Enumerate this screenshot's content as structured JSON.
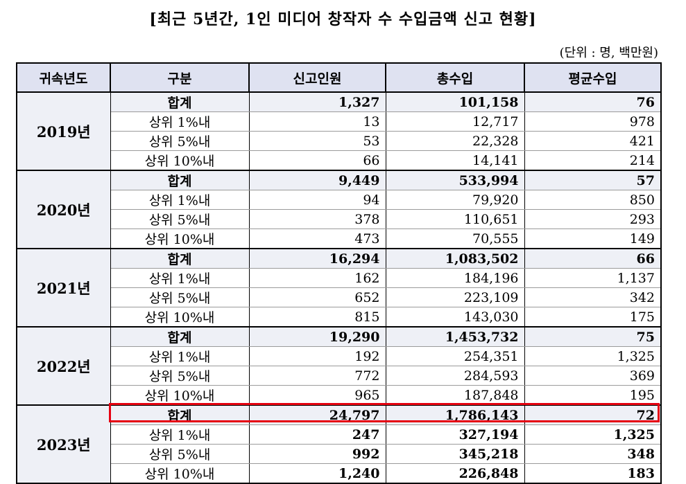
{
  "title": "[최근 5년간, 1인 미디어 창작자 수 수입금액 신고 현황]",
  "unit": "(단위 : 명, 백만원)",
  "columns": [
    "귀속년도",
    "구분",
    "신고인원",
    "총수입",
    "평균수입"
  ],
  "years": [
    {
      "year": "2019년",
      "rows": [
        {
          "label": "합계",
          "count": "1,327",
          "income": "101,158",
          "avg": "76"
        },
        {
          "label": "상위 1%내",
          "count": "13",
          "income": "12,717",
          "avg": "978"
        },
        {
          "label": "상위 5%내",
          "count": "53",
          "income": "22,328",
          "avg": "421"
        },
        {
          "label": "상위 10%내",
          "count": "66",
          "income": "14,141",
          "avg": "214"
        }
      ]
    },
    {
      "year": "2020년",
      "rows": [
        {
          "label": "합계",
          "count": "9,449",
          "income": "533,994",
          "avg": "57"
        },
        {
          "label": "상위 1%내",
          "count": "94",
          "income": "79,920",
          "avg": "850"
        },
        {
          "label": "상위 5%내",
          "count": "378",
          "income": "110,651",
          "avg": "293"
        },
        {
          "label": "상위 10%내",
          "count": "473",
          "income": "70,555",
          "avg": "149"
        }
      ]
    },
    {
      "year": "2021년",
      "rows": [
        {
          "label": "합계",
          "count": "16,294",
          "income": "1,083,502",
          "avg": "66"
        },
        {
          "label": "상위 1%내",
          "count": "162",
          "income": "184,196",
          "avg": "1,137"
        },
        {
          "label": "상위 5%내",
          "count": "652",
          "income": "223,109",
          "avg": "342"
        },
        {
          "label": "상위 10%내",
          "count": "815",
          "income": "143,030",
          "avg": "175"
        }
      ]
    },
    {
      "year": "2022년",
      "rows": [
        {
          "label": "합계",
          "count": "19,290",
          "income": "1,453,732",
          "avg": "75"
        },
        {
          "label": "상위 1%내",
          "count": "192",
          "income": "254,351",
          "avg": "1,325"
        },
        {
          "label": "상위 5%내",
          "count": "772",
          "income": "284,593",
          "avg": "369"
        },
        {
          "label": "상위 10%내",
          "count": "965",
          "income": "187,848",
          "avg": "195"
        }
      ]
    },
    {
      "year": "2023년",
      "rows": [
        {
          "label": "합계",
          "count": "24,797",
          "income": "1,786,143",
          "avg": "72"
        },
        {
          "label": "상위 1%내",
          "count": "247",
          "income": "327,194",
          "avg": "1,325"
        },
        {
          "label": "상위 5%내",
          "count": "992",
          "income": "345,218",
          "avg": "348"
        },
        {
          "label": "상위 10%내",
          "count": "1,240",
          "income": "226,848",
          "avg": "183"
        }
      ]
    }
  ],
  "highlight_color": "#e60012",
  "header_bg": "#dfe2f1",
  "total_row_bg": "#eef0f6"
}
